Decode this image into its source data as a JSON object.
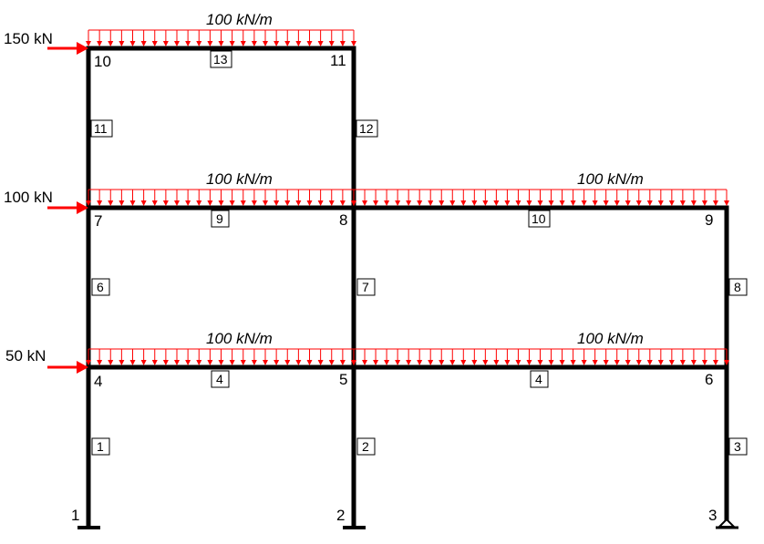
{
  "diagram": {
    "nodes": [
      {
        "id": "1",
        "label": "1"
      },
      {
        "id": "2",
        "label": "2"
      },
      {
        "id": "3",
        "label": "3"
      },
      {
        "id": "4",
        "label": "4"
      },
      {
        "id": "5",
        "label": "5"
      },
      {
        "id": "6",
        "label": "6"
      },
      {
        "id": "7",
        "label": "7"
      },
      {
        "id": "8",
        "label": "8"
      },
      {
        "id": "9",
        "label": "9"
      },
      {
        "id": "10",
        "label": "10"
      },
      {
        "id": "11",
        "label": "11"
      }
    ],
    "members": [
      {
        "label": "1",
        "from": "1",
        "to": "4"
      },
      {
        "label": "2",
        "from": "2",
        "to": "5"
      },
      {
        "label": "3",
        "from": "3",
        "to": "6"
      },
      {
        "label": "4",
        "from": "4",
        "to": "5"
      },
      {
        "label": "4",
        "from": "5",
        "to": "6"
      },
      {
        "label": "6",
        "from": "4",
        "to": "7"
      },
      {
        "label": "7",
        "from": "5",
        "to": "8"
      },
      {
        "label": "8",
        "from": "6",
        "to": "9"
      },
      {
        "label": "9",
        "from": "7",
        "to": "8"
      },
      {
        "label": "10",
        "from": "8",
        "to": "9"
      },
      {
        "label": "11",
        "from": "7",
        "to": "10"
      },
      {
        "label": "12",
        "from": "8",
        "to": "11"
      },
      {
        "label": "13",
        "from": "10",
        "to": "11"
      }
    ],
    "supports": [
      {
        "node": "1",
        "type": "fixed"
      },
      {
        "node": "2",
        "type": "fixed"
      },
      {
        "node": "3",
        "type": "pinned"
      }
    ],
    "point_loads": [
      {
        "node": "10",
        "label": "150 kN",
        "color": "#ff0000"
      },
      {
        "node": "7",
        "label": "100 kN",
        "color": "#ff0000"
      },
      {
        "node": "4",
        "label": "50 kN",
        "color": "#ff0000"
      }
    ],
    "distributed_loads": [
      {
        "span": "10-11",
        "label": "100 kN/m",
        "color": "#ff0000"
      },
      {
        "span": "7-8",
        "label": "100 kN/m",
        "color": "#ff0000"
      },
      {
        "span": "8-9",
        "label": "100 kN/m",
        "color": "#ff0000"
      },
      {
        "span": "4-5",
        "label": "100 kN/m",
        "color": "#ff0000"
      },
      {
        "span": "5-6",
        "label": "100 kN/m",
        "color": "#ff0000"
      }
    ]
  }
}
